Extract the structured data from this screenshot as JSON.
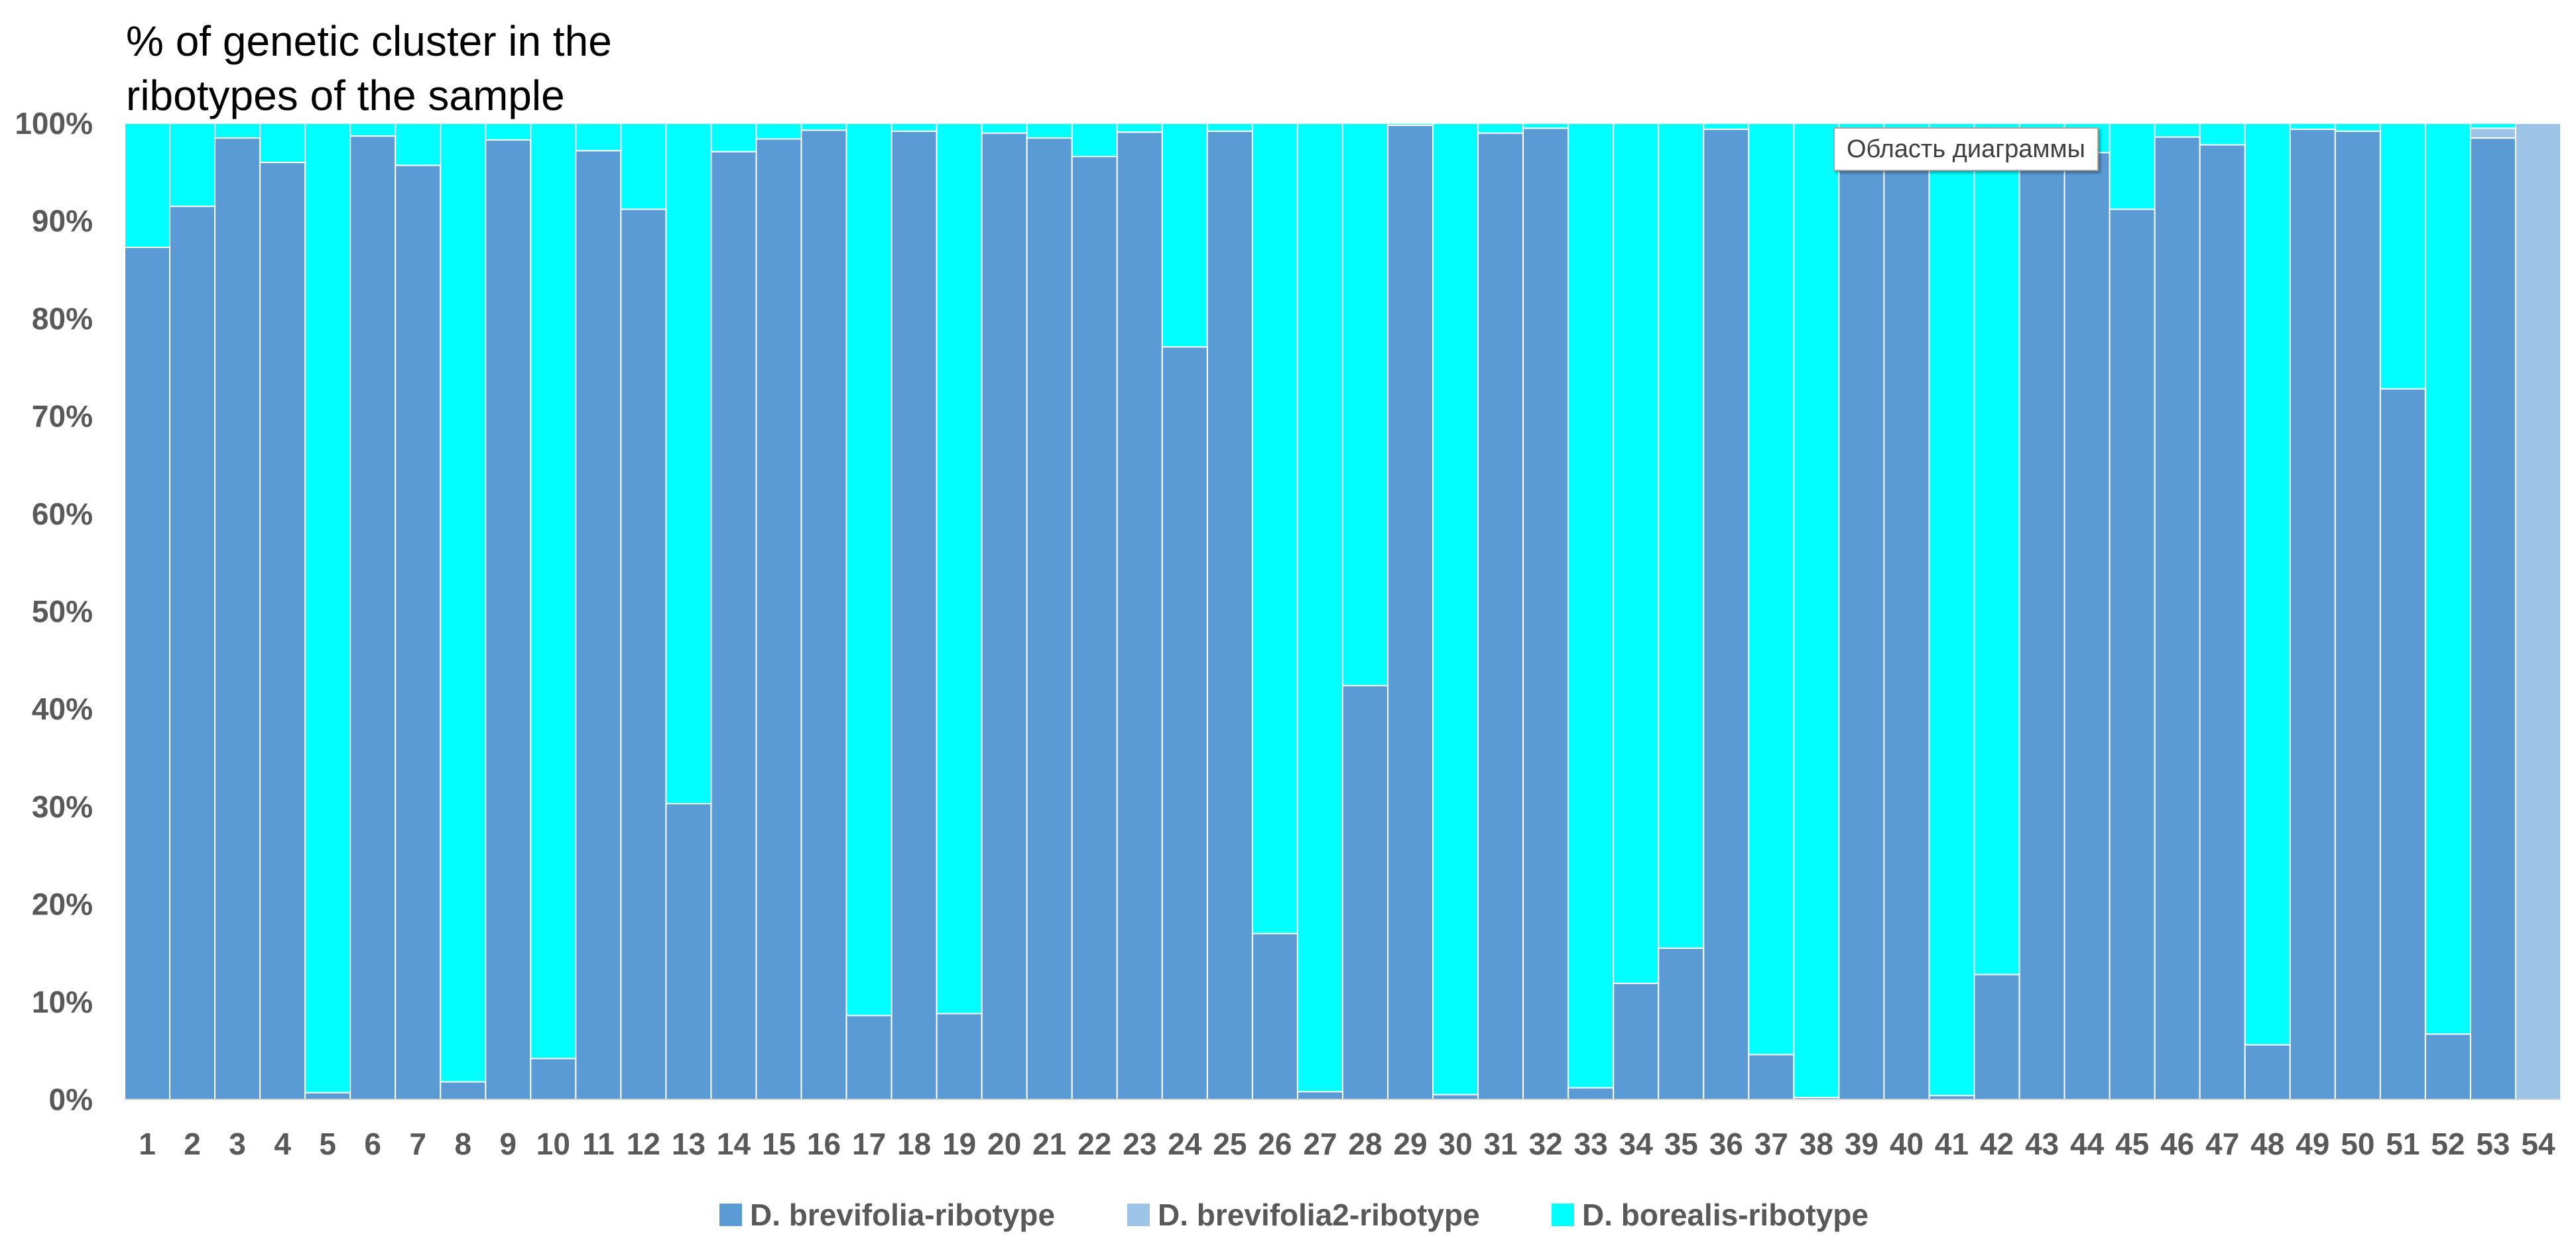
{
  "chart_data": {
    "type": "bar",
    "stacked": "percent",
    "title": "% of genetic cluster in the ribotypes of the sample",
    "title_lines": [
      "% of genetic cluster in the",
      "ribotypes of the sample"
    ],
    "xlabel": "",
    "ylabel": "",
    "ylim": [
      0,
      100
    ],
    "y_ticks": [
      "0%",
      "10%",
      "20%",
      "30%",
      "40%",
      "50%",
      "60%",
      "70%",
      "80%",
      "90%",
      "100%"
    ],
    "categories": [
      "1",
      "2",
      "3",
      "4",
      "5",
      "6",
      "7",
      "8",
      "9",
      "10",
      "11",
      "12",
      "13",
      "14",
      "15",
      "16",
      "17",
      "18",
      "19",
      "20",
      "21",
      "22",
      "23",
      "24",
      "25",
      "26",
      "27",
      "28",
      "29",
      "30",
      "31",
      "32",
      "33",
      "34",
      "35",
      "36",
      "37",
      "38",
      "39",
      "40",
      "41",
      "42",
      "43",
      "44",
      "45",
      "46",
      "47",
      "48",
      "49",
      "50",
      "51",
      "52",
      "53",
      "54"
    ],
    "series": [
      {
        "name": "D. brevifolia-ribotype",
        "color": "#5b9bd5",
        "values": [
          87.3,
          91.5,
          98.5,
          96.0,
          0.7,
          98.7,
          95.7,
          1.8,
          98.3,
          4.2,
          97.2,
          91.2,
          30.3,
          97.1,
          98.4,
          99.3,
          8.6,
          99.2,
          8.8,
          99.0,
          98.5,
          96.6,
          99.1,
          77.1,
          99.2,
          17.0,
          0.8,
          42.4,
          99.8,
          0.5,
          99.0,
          99.5,
          1.2,
          11.9,
          15.5,
          99.4,
          4.6,
          0.2,
          97.0,
          96.0,
          0.4,
          12.8,
          97.0,
          97.0,
          91.2,
          98.6,
          97.8,
          5.6,
          99.4,
          99.2,
          72.8,
          6.7,
          98.5,
          0.0
        ]
      },
      {
        "name": "D. brevifolia2-ribotype",
        "color": "#9dc3e6",
        "values": [
          0,
          0,
          0,
          0,
          0,
          0,
          0,
          0,
          0,
          0,
          0,
          0,
          0,
          0,
          0,
          0,
          0,
          0,
          0,
          0,
          0,
          0,
          0,
          0,
          0,
          0,
          0,
          0,
          0,
          0,
          0,
          0,
          0,
          0,
          0,
          0,
          0,
          0,
          0,
          0,
          0,
          0,
          0,
          0,
          0,
          0,
          0,
          0,
          0,
          0,
          0,
          0,
          1.0,
          100.0
        ]
      },
      {
        "name": "D. borealis-ribotype",
        "color": "#00ffff",
        "values": [
          12.7,
          8.5,
          1.5,
          4.0,
          99.3,
          1.3,
          4.3,
          98.2,
          1.7,
          95.8,
          2.8,
          8.8,
          69.7,
          2.9,
          1.6,
          0.7,
          91.4,
          0.8,
          91.2,
          1.0,
          1.5,
          3.4,
          0.9,
          22.9,
          0.8,
          83.0,
          99.2,
          57.6,
          0.2,
          99.5,
          1.0,
          0.5,
          98.8,
          88.1,
          84.5,
          0.6,
          95.4,
          99.8,
          3.0,
          4.0,
          99.6,
          87.2,
          3.0,
          3.0,
          8.8,
          1.4,
          2.2,
          94.4,
          0.6,
          0.8,
          27.2,
          93.3,
          0.5,
          0.0
        ]
      }
    ],
    "legend": {
      "position": "bottom",
      "entries": [
        "D. brevifolia-ribotype",
        "D. brevifolia2-ribotype",
        "D. borealis-ribotype"
      ]
    },
    "grid": false
  },
  "tooltip": {
    "text": "Область диаграммы"
  }
}
